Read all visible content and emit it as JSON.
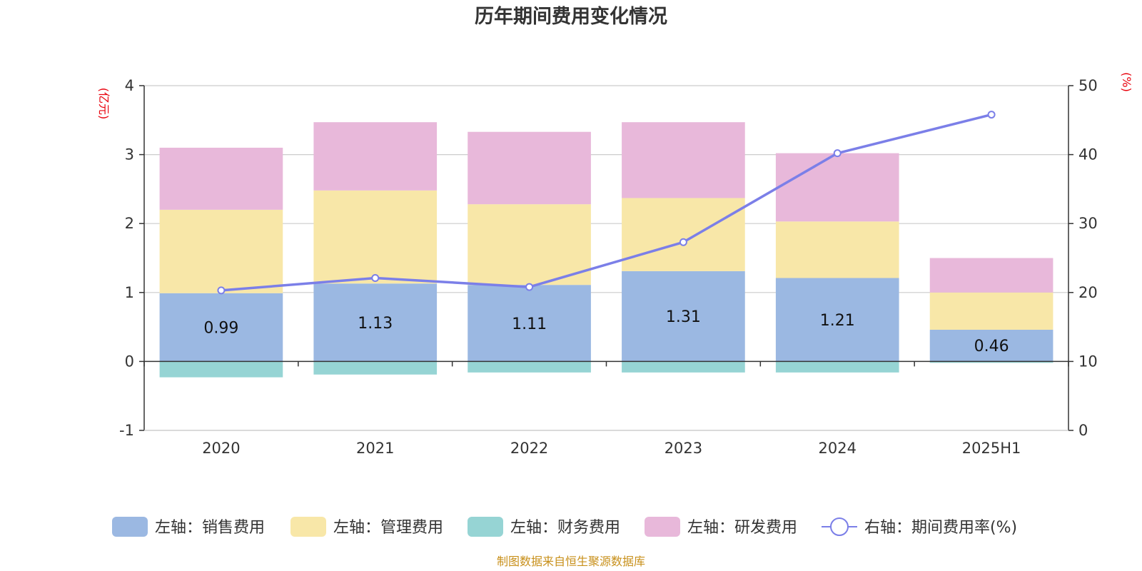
{
  "chart_data": {
    "type": "bar",
    "title": "历年期间费用变化情况",
    "categories": [
      "2020",
      "2021",
      "2022",
      "2023",
      "2024",
      "2025H1"
    ],
    "left_axis": {
      "unit": "(亿元)",
      "ylim": [
        -1,
        4
      ],
      "ticks": [
        -1,
        0,
        1,
        2,
        3,
        4
      ]
    },
    "right_axis": {
      "unit": "(%)",
      "ylim": [
        0,
        50
      ],
      "ticks": [
        0,
        10,
        20,
        30,
        40,
        50
      ]
    },
    "stacked": true,
    "grid": true,
    "legend_position": "bottom",
    "series": [
      {
        "name": "左轴：销售费用",
        "axis": "left",
        "type": "bar",
        "color": "#9bb8e2",
        "values": [
          0.99,
          1.13,
          1.11,
          1.31,
          1.21,
          0.46
        ],
        "data_labels": [
          "0.99",
          "1.13",
          "1.11",
          "1.31",
          "1.21",
          "0.46"
        ]
      },
      {
        "name": "左轴：管理费用",
        "axis": "left",
        "type": "bar",
        "color": "#f8e7a8",
        "values": [
          1.21,
          1.35,
          1.17,
          1.06,
          0.82,
          0.54
        ]
      },
      {
        "name": "左轴：财务费用",
        "axis": "left",
        "type": "bar",
        "color": "#96d4d4",
        "values": [
          -0.23,
          -0.19,
          -0.16,
          -0.16,
          -0.16,
          -0.02
        ]
      },
      {
        "name": "左轴：研发费用",
        "axis": "left",
        "type": "bar",
        "color": "#e8b8da",
        "values": [
          0.9,
          0.99,
          1.05,
          1.1,
          0.99,
          0.5
        ]
      },
      {
        "name": "右轴：期间费用率(%)",
        "axis": "right",
        "type": "line",
        "color": "#7b7fe8",
        "values": [
          20.3,
          22.1,
          20.8,
          27.3,
          40.2,
          45.8
        ]
      }
    ]
  },
  "footer": {
    "source": "制图数据来自恒生聚源数据库"
  }
}
